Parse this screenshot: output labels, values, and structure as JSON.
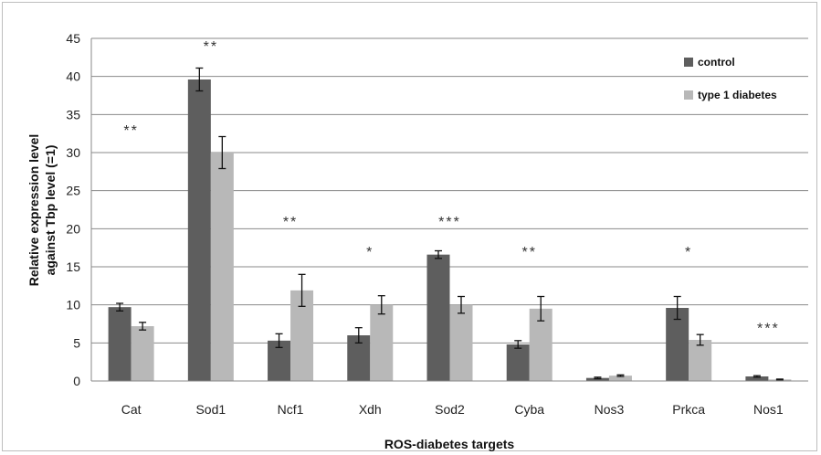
{
  "chart_data": {
    "type": "bar",
    "title": "",
    "xlabel": "ROS-diabetes targets",
    "ylabel_lines": [
      "Relative expression level",
      "against Tbp level (=1)"
    ],
    "ylim": [
      0,
      45
    ],
    "yticks": [
      0,
      5,
      10,
      15,
      20,
      25,
      30,
      35,
      40,
      45
    ],
    "grid": true,
    "legend_position": "top-right",
    "categories": [
      "Cat",
      "Sod1",
      "Ncf1",
      "Xdh",
      "Sod2",
      "Cyba",
      "Nos3",
      "Prkca",
      "Nos1"
    ],
    "series": [
      {
        "name": "control",
        "color": "#5e5e5e",
        "values": [
          9.7,
          39.6,
          5.3,
          6.0,
          16.6,
          4.8,
          0.4,
          9.6,
          0.6
        ],
        "errors": [
          0.5,
          1.5,
          0.9,
          1.0,
          0.5,
          0.5,
          0.1,
          1.5,
          0.1
        ]
      },
      {
        "name": "type 1 diabetes",
        "color": "#b8b8b8",
        "values": [
          7.2,
          30.0,
          11.9,
          10.0,
          10.0,
          9.5,
          0.7,
          5.4,
          0.2
        ],
        "errors": [
          0.5,
          2.1,
          2.1,
          1.2,
          1.1,
          1.6,
          0.1,
          0.7,
          0.05
        ]
      }
    ],
    "significance": [
      "**",
      "**",
      "**",
      "*",
      "***",
      "**",
      "",
      "*",
      "***"
    ],
    "significance_level": [
      33.5,
      44.5,
      21.5,
      17.5,
      21.5,
      17.5,
      null,
      17.5,
      7.5
    ]
  }
}
